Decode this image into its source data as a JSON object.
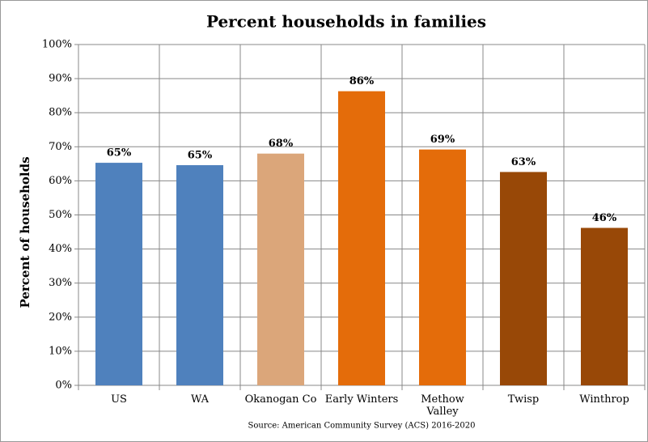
{
  "chart_data": {
    "type": "bar",
    "title": "Percent households in families",
    "y_label": "Percent of households",
    "source": "Source: American Community Survey (ACS) 2016-2020",
    "categories": [
      "US",
      "WA",
      "Okanogan Co",
      "Early Winters",
      "Methow\nValley",
      "Twisp",
      "Winthrop"
    ],
    "values": [
      65.3,
      64.6,
      68.0,
      86.3,
      69.2,
      62.6,
      46.2
    ],
    "value_labels": [
      "65%",
      "65%",
      "68%",
      "86%",
      "69%",
      "63%",
      "46%"
    ],
    "colors": [
      "#4f81bd",
      "#4f81bd",
      "#dba67a",
      "#e46c0a",
      "#e46c0a",
      "#984807",
      "#984807"
    ],
    "ylim": [
      0,
      100
    ],
    "yticks": [
      {
        "value": 0,
        "label": "0%"
      },
      {
        "value": 10,
        "label": "10%"
      },
      {
        "value": 20,
        "label": "20%"
      },
      {
        "value": 30,
        "label": "30%"
      },
      {
        "value": 40,
        "label": "40%"
      },
      {
        "value": 50,
        "label": "50%"
      },
      {
        "value": 60,
        "label": "60%"
      },
      {
        "value": 70,
        "label": "70%"
      },
      {
        "value": 80,
        "label": "80%"
      },
      {
        "value": 90,
        "label": "90%"
      },
      {
        "value": 100,
        "label": "100%"
      }
    ],
    "grid": true
  }
}
